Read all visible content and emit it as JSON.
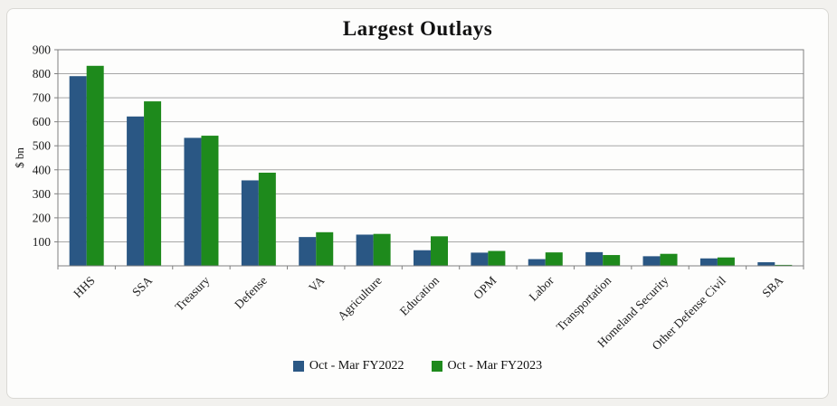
{
  "page": {
    "background_color": "#f2f1ee",
    "card_background": "#fdfdfc",
    "card_border_color": "#d9d8d4"
  },
  "chart_data": {
    "type": "bar",
    "title": "Largest Outlays",
    "xlabel": "",
    "ylabel": "$ bn",
    "ylim": [
      0,
      900
    ],
    "ytick_step": 100,
    "ytick_labels": [
      100,
      200,
      300,
      400,
      500,
      600,
      700,
      800,
      900
    ],
    "grid": true,
    "legend_position": "bottom",
    "categories": [
      "HHS",
      "SSA",
      "Treasury",
      "Defense",
      "VA",
      "Agriculture",
      "Education",
      "OPM",
      "Labor",
      "Transportation",
      "Homeland Security",
      "Other Defense Civil",
      "SBA"
    ],
    "series": [
      {
        "name": "Oct - Mar FY2022",
        "color": "#2a5784",
        "values": [
          790,
          622,
          533,
          356,
          120,
          130,
          65,
          55,
          28,
          57,
          40,
          31,
          15
        ]
      },
      {
        "name": "Oct - Mar FY2023",
        "color": "#1e8a1c",
        "values": [
          833,
          685,
          542,
          388,
          140,
          133,
          123,
          62,
          56,
          45,
          50,
          35,
          4
        ]
      }
    ],
    "style": {
      "gridline_color": "#a6a6a6",
      "frame_color": "#7f7f7f",
      "text_color": "#1a1a1a",
      "xlabel_rotation_deg": -45
    }
  }
}
